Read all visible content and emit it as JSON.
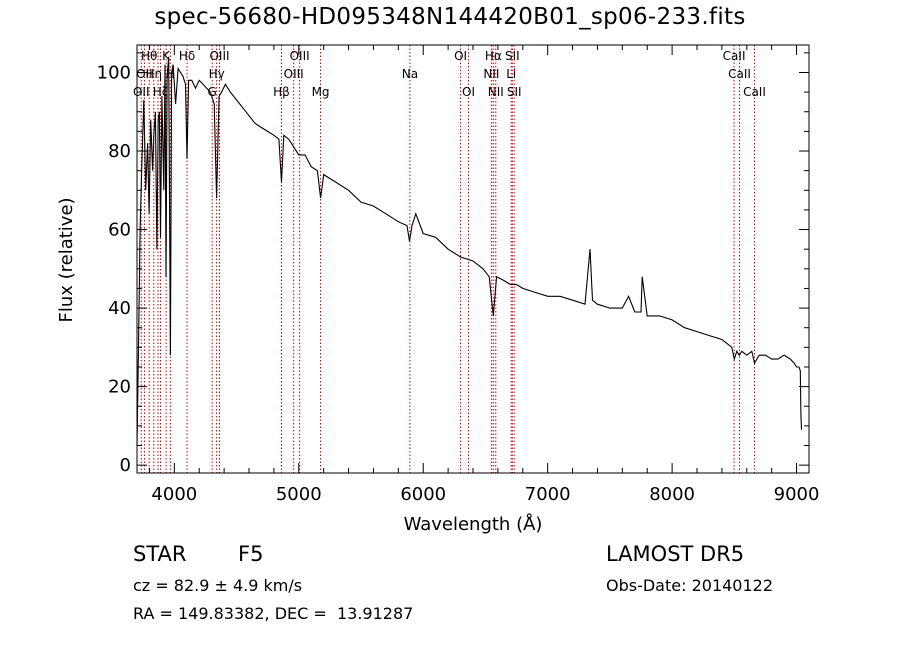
{
  "header": {
    "title": "spec-56680-HD095348N144420B01_sp06-233.fits"
  },
  "info": {
    "object_class": "STAR",
    "subclass": "F5",
    "survey": "LAMOST DR5",
    "redshift_text": "cz = 82.9 ± 4.9 km/s",
    "obs_date": "Obs-Date: 20140122",
    "coords": "RA = 149.83382, DEC =  13.91287"
  },
  "chart_data": {
    "type": "line",
    "title": "spec-56680-HD095348N144420B01_sp06-233.fits",
    "xlabel": "Wavelength (Å)",
    "ylabel": "Flux (relative)",
    "xlim": [
      3700,
      9100
    ],
    "ylim": [
      -2,
      107
    ],
    "xticks": [
      4000,
      5000,
      6000,
      7000,
      8000,
      9000
    ],
    "yticks": [
      0,
      20,
      40,
      60,
      80,
      100
    ],
    "grid": false,
    "line_color": "#000000",
    "marker_color": "#cc0000",
    "series": [
      {
        "x": [
          3700,
          3712,
          3725,
          3740,
          3755,
          3770,
          3785,
          3797,
          3810,
          3825,
          3835,
          3848,
          3860,
          3870,
          3880,
          3889,
          3900,
          3915,
          3925,
          3933,
          3942,
          3955,
          3968,
          3978,
          3990,
          4010,
          4030,
          4050,
          4070,
          4090,
          4102,
          4115,
          4140,
          4170,
          4200,
          4230,
          4260,
          4290,
          4320,
          4340,
          4360,
          4380,
          4410,
          4450,
          4500,
          4550,
          4600,
          4650,
          4700,
          4750,
          4800,
          4840,
          4861,
          4880,
          4920,
          4960,
          5000,
          5050,
          5100,
          5150,
          5175,
          5200,
          5250,
          5300,
          5400,
          5500,
          5600,
          5700,
          5800,
          5870,
          5890,
          5910,
          5940,
          6000,
          6100,
          6200,
          6300,
          6400,
          6480,
          6530,
          6563,
          6590,
          6650,
          6700,
          6750,
          6800,
          6900,
          7000,
          7100,
          7200,
          7300,
          7340,
          7360,
          7400,
          7500,
          7600,
          7650,
          7700,
          7750,
          7760,
          7800,
          7900,
          8000,
          8100,
          8200,
          8300,
          8400,
          8480,
          8500,
          8520,
          8540,
          8560,
          8600,
          8640,
          8662,
          8700,
          8750,
          8800,
          8850,
          8900,
          8950,
          8980,
          9000,
          9020,
          9030,
          9035,
          9040
        ],
        "y": [
          5,
          30,
          60,
          78,
          93,
          70,
          82,
          64,
          88,
          75,
          84,
          90,
          55,
          88,
          90,
          58,
          94,
          70,
          102,
          48,
          99,
          104,
          28,
          100,
          102,
          92,
          101,
          100,
          99,
          97,
          78,
          98,
          98,
          96,
          98,
          97,
          96,
          95,
          92,
          68,
          94,
          95,
          97,
          95,
          93,
          91,
          89,
          87,
          86,
          85,
          84,
          83,
          72,
          84,
          83,
          81,
          79,
          79,
          76,
          75,
          68,
          74,
          73,
          72,
          70,
          67,
          66,
          64,
          62,
          61,
          57,
          61,
          64,
          59,
          58,
          55,
          53,
          52,
          50,
          48,
          38,
          48,
          47,
          46,
          46,
          45,
          44,
          43,
          43,
          42,
          41,
          55,
          42,
          41,
          40,
          40,
          43,
          39,
          39,
          48,
          38,
          38,
          37,
          35,
          34,
          33,
          32,
          30,
          27,
          29,
          28,
          29,
          28,
          29,
          26,
          28,
          28,
          27,
          27,
          28,
          27,
          26,
          25,
          25,
          24,
          13,
          9
        ]
      }
    ],
    "lines": [
      {
        "w": 3734,
        "label": "OII",
        "row": 3
      },
      {
        "w": 3760,
        "label": "OII",
        "row": 2
      },
      {
        "w": 3798,
        "label": "Hθ",
        "row": 1
      },
      {
        "w": 3835,
        "label": "Hη",
        "row": 2
      },
      {
        "w": 3869,
        "label": "",
        "row": 0
      },
      {
        "w": 3889,
        "label": "Hζ",
        "row": 3
      },
      {
        "w": 3934,
        "label": "K",
        "row": 1
      },
      {
        "w": 3968,
        "label": "H",
        "row": 2
      },
      {
        "w": 4102,
        "label": "Hδ",
        "row": 1
      },
      {
        "w": 4304,
        "label": "G",
        "row": 3
      },
      {
        "w": 4340,
        "label": "Hγ",
        "row": 2
      },
      {
        "w": 4363,
        "label": "OIII",
        "row": 1
      },
      {
        "w": 4861,
        "label": "Hβ",
        "row": 3
      },
      {
        "w": 4959,
        "label": "OIII",
        "row": 2
      },
      {
        "w": 5007,
        "label": "OIII",
        "row": 1
      },
      {
        "w": 5175,
        "label": "Mg",
        "row": 3
      },
      {
        "w": 5893,
        "label": "Na",
        "row": 2
      },
      {
        "w": 6300,
        "label": "OI",
        "row": 1
      },
      {
        "w": 6364,
        "label": "OI",
        "row": 3
      },
      {
        "w": 6548,
        "label": "NII",
        "row": 2
      },
      {
        "w": 6563,
        "label": "Hα",
        "row": 1
      },
      {
        "w": 6583,
        "label": "NII",
        "row": 3
      },
      {
        "w": 6707,
        "label": "Li",
        "row": 2
      },
      {
        "w": 6716,
        "label": "SII",
        "row": 1
      },
      {
        "w": 6731,
        "label": "SII",
        "row": 3
      },
      {
        "w": 8498,
        "label": "CaII",
        "row": 1
      },
      {
        "w": 8542,
        "label": "CaII",
        "row": 2
      },
      {
        "w": 8662,
        "label": "CaII",
        "row": 3
      }
    ]
  }
}
